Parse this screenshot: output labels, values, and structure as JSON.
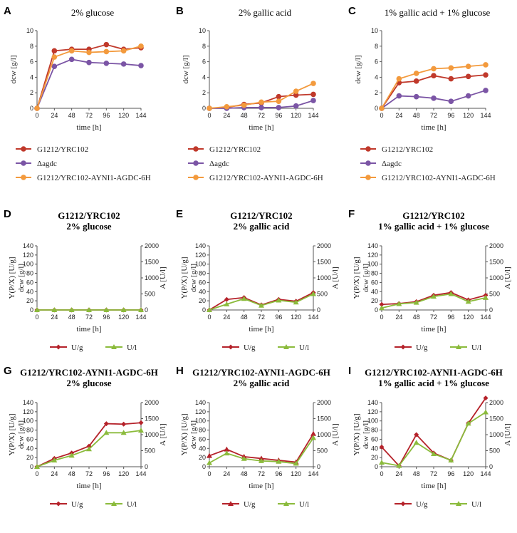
{
  "colors": {
    "red": "#c0392b",
    "purple": "#7b55a5",
    "orange": "#f39a3d",
    "darkred": "#b5222a",
    "green": "#8bbb3c"
  },
  "chart_data": [
    {
      "id": "A",
      "type": "line",
      "letter": "A",
      "title": [
        "2% glucose"
      ],
      "x": [
        0,
        24,
        48,
        72,
        96,
        120,
        144
      ],
      "xlabel": "time [h]",
      "ylabel": "dcw [g/l]",
      "ylim": [
        0,
        10
      ],
      "yticks": [
        0,
        2,
        4,
        6,
        8,
        10
      ],
      "series": [
        {
          "name": "G1212/YRC102",
          "color": "red",
          "marker": "circle",
          "values": [
            0,
            7.4,
            7.6,
            7.6,
            8.2,
            7.6,
            7.8
          ]
        },
        {
          "name": "Δagdc",
          "color": "purple",
          "marker": "circle",
          "values": [
            0,
            5.4,
            6.3,
            5.9,
            5.8,
            5.7,
            5.5
          ]
        },
        {
          "name": "G1212/YRC102-AYNI1-AGDC-6H",
          "color": "orange",
          "marker": "circle",
          "values": [
            0,
            6.6,
            7.4,
            7.2,
            7.3,
            7.4,
            8.0
          ]
        }
      ]
    },
    {
      "id": "B",
      "type": "line",
      "letter": "B",
      "title": [
        "2% gallic acid"
      ],
      "x": [
        0,
        24,
        48,
        72,
        96,
        120,
        144
      ],
      "xlabel": "time [h]",
      "ylabel": "dcw [g/l]",
      "ylim": [
        0,
        10
      ],
      "yticks": [
        0,
        2,
        4,
        6,
        8,
        10
      ],
      "series": [
        {
          "name": "G1212/YRC102",
          "color": "red",
          "marker": "circle",
          "values": [
            0,
            0.1,
            0.5,
            0.7,
            1.5,
            1.7,
            1.8
          ]
        },
        {
          "name": "Δagdc",
          "color": "purple",
          "marker": "circle",
          "values": [
            0,
            0.0,
            0.1,
            0.1,
            0.1,
            0.3,
            1.0
          ]
        },
        {
          "name": "G1212/YRC102-AYNI1-AGDC-6H",
          "color": "orange",
          "marker": "circle",
          "values": [
            0,
            0.2,
            0.4,
            0.8,
            0.9,
            2.2,
            3.2
          ]
        }
      ]
    },
    {
      "id": "C",
      "type": "line",
      "letter": "C",
      "title": [
        "1% gallic acid + 1% glucose"
      ],
      "x": [
        0,
        24,
        48,
        72,
        96,
        120,
        144
      ],
      "xlabel": "time [h]",
      "ylabel": "dcw [g/l]",
      "ylim": [
        0,
        10
      ],
      "yticks": [
        0,
        2,
        4,
        6,
        8,
        10
      ],
      "series": [
        {
          "name": "G1212/YRC102",
          "color": "red",
          "marker": "circle",
          "values": [
            0,
            3.3,
            3.5,
            4.2,
            3.8,
            4.1,
            4.3
          ]
        },
        {
          "name": "Δagdc",
          "color": "purple",
          "marker": "circle",
          "values": [
            0,
            1.6,
            1.5,
            1.3,
            0.9,
            1.6,
            2.3
          ]
        },
        {
          "name": "G1212/YRC102-AYNI1-AGDC-6H",
          "color": "orange",
          "marker": "circle",
          "values": [
            0,
            3.8,
            4.5,
            5.1,
            5.2,
            5.4,
            5.6
          ]
        }
      ]
    },
    {
      "id": "D",
      "type": "line",
      "letter": "D",
      "title": [
        "G1212/YRC102",
        "2% glucose"
      ],
      "x": [
        0,
        24,
        48,
        72,
        96,
        120,
        144
      ],
      "xlabel": "time [h]",
      "ylabel": "dcw [g/l]",
      "ylabel2": "Y(P/X) [U/g]",
      "ylabel_right": "A [U/l]",
      "ylim": [
        0,
        140
      ],
      "yticks": [
        0,
        20,
        40,
        60,
        80,
        100,
        120,
        140
      ],
      "ylim_right": [
        0,
        2000
      ],
      "yticks_right": [
        0,
        500,
        1000,
        1500,
        2000
      ],
      "series": [
        {
          "name": "U/g",
          "color": "darkred",
          "marker": "diamond",
          "axis": "left",
          "values": [
            0,
            0,
            0,
            0,
            0,
            0,
            0
          ]
        },
        {
          "name": "U/l",
          "color": "green",
          "marker": "triangle",
          "axis": "right",
          "values": [
            0,
            0,
            0,
            0,
            0,
            0,
            0
          ]
        }
      ]
    },
    {
      "id": "E",
      "type": "line",
      "letter": "E",
      "title": [
        "G1212/YRC102",
        "2% gallic acid"
      ],
      "x": [
        0,
        24,
        48,
        72,
        96,
        120,
        144
      ],
      "xlabel": "time [h]",
      "ylabel": "dcw [g/l]",
      "ylabel2": "Y(P/X) [U/g]",
      "ylabel_right": "A [U/l]",
      "ylim": [
        0,
        140
      ],
      "yticks": [
        0,
        20,
        40,
        60,
        80,
        100,
        120,
        140
      ],
      "ylim_right": [
        0,
        2000
      ],
      "yticks_right": [
        0,
        500,
        1000,
        1500,
        2000
      ],
      "series": [
        {
          "name": "U/g",
          "color": "darkred",
          "marker": "diamond",
          "axis": "left",
          "values": [
            0,
            23,
            27,
            11,
            23,
            19,
            38
          ]
        },
        {
          "name": "U/l",
          "color": "green",
          "marker": "triangle",
          "axis": "right",
          "values": [
            0,
            180,
            350,
            140,
            300,
            240,
            500
          ]
        }
      ]
    },
    {
      "id": "F",
      "type": "line",
      "letter": "F",
      "title": [
        "G1212/YRC102",
        "1% gallic acid + 1% glucose"
      ],
      "x": [
        0,
        24,
        48,
        72,
        96,
        120,
        144
      ],
      "xlabel": "time [h]",
      "ylabel": "dcw [g/l]",
      "ylabel2": "Y(P/X) [U/g]",
      "ylabel_right": "A [U/l]",
      "ylim": [
        0,
        140
      ],
      "yticks": [
        0,
        20,
        40,
        60,
        80,
        100,
        120,
        140
      ],
      "ylim_right": [
        0,
        2000
      ],
      "yticks_right": [
        0,
        500,
        1000,
        1500,
        2000
      ],
      "series": [
        {
          "name": "U/g",
          "color": "darkred",
          "marker": "diamond",
          "axis": "left",
          "values": [
            12,
            14,
            18,
            32,
            38,
            22,
            32
          ]
        },
        {
          "name": "U/l",
          "color": "green",
          "marker": "triangle",
          "axis": "right",
          "values": [
            60,
            190,
            230,
            420,
            500,
            260,
            380
          ]
        }
      ]
    },
    {
      "id": "G",
      "type": "line",
      "letter": "G",
      "title": [
        "G1212/YRC102-AYNI1-AGDC-6H",
        "2% glucose"
      ],
      "x": [
        0,
        24,
        48,
        72,
        96,
        120,
        144
      ],
      "xlabel": "time [h]",
      "ylabel": "dcw [g/l]",
      "ylabel2": "Y(P/X) [U/g]",
      "ylabel_right": "A [U/l]",
      "ylim": [
        0,
        140
      ],
      "yticks": [
        0,
        20,
        40,
        60,
        80,
        100,
        120,
        140
      ],
      "ylim_right": [
        0,
        2000
      ],
      "yticks_right": [
        0,
        500,
        1000,
        1500,
        2000
      ],
      "series": [
        {
          "name": "U/g",
          "color": "darkred",
          "marker": "diamond",
          "axis": "left",
          "values": [
            0,
            18,
            30,
            45,
            94,
            93,
            96
          ]
        },
        {
          "name": "U/l",
          "color": "green",
          "marker": "triangle",
          "axis": "right",
          "values": [
            0,
            200,
            350,
            550,
            1060,
            1060,
            1130
          ]
        }
      ]
    },
    {
      "id": "H",
      "type": "line",
      "letter": "H",
      "title": [
        "G1212/YRC102-AYNI1-AGDC-6H",
        "2% gallic acid"
      ],
      "x": [
        0,
        24,
        48,
        72,
        96,
        120,
        144
      ],
      "xlabel": "time [h]",
      "ylabel": "dcw [g/l]",
      "ylabel2": "Y(P/X) [U/g]",
      "ylabel_right": "A [U/l]",
      "ylim": [
        0,
        140
      ],
      "yticks": [
        0,
        20,
        40,
        60,
        80,
        100,
        120,
        140
      ],
      "ylim_right": [
        0,
        2000
      ],
      "yticks_right": [
        0,
        500,
        1000,
        1500,
        2000
      ],
      "series": [
        {
          "name": "U/g",
          "color": "darkred",
          "marker": "triangle",
          "axis": "left",
          "values": [
            24,
            38,
            22,
            18,
            14,
            10,
            72
          ]
        },
        {
          "name": "U/l",
          "color": "green",
          "marker": "triangle",
          "axis": "right",
          "values": [
            120,
            420,
            250,
            180,
            160,
            100,
            900
          ]
        }
      ]
    },
    {
      "id": "I",
      "type": "line",
      "letter": "I",
      "title": [
        "G1212/YRC102-AYNI1-AGDC-6H",
        "1% gallic acid + 1% glucose"
      ],
      "x": [
        0,
        24,
        48,
        72,
        96,
        120,
        144
      ],
      "xlabel": "time [h]",
      "ylabel": "dcw [g/l]",
      "ylabel2": "Y(P/X) [U/g]",
      "ylabel_right": "A [U/l]",
      "ylim": [
        0,
        140
      ],
      "yticks": [
        0,
        20,
        40,
        60,
        80,
        100,
        120,
        140
      ],
      "ylim_right": [
        0,
        2000
      ],
      "yticks_right": [
        0,
        500,
        1000,
        1500,
        2000
      ],
      "series": [
        {
          "name": "U/g",
          "color": "darkred",
          "marker": "diamond",
          "axis": "left",
          "values": [
            43,
            2,
            70,
            30,
            14,
            95,
            150
          ]
        },
        {
          "name": "U/l",
          "color": "green",
          "marker": "triangle",
          "axis": "right",
          "values": [
            130,
            30,
            750,
            400,
            200,
            1350,
            1700
          ]
        }
      ]
    }
  ]
}
